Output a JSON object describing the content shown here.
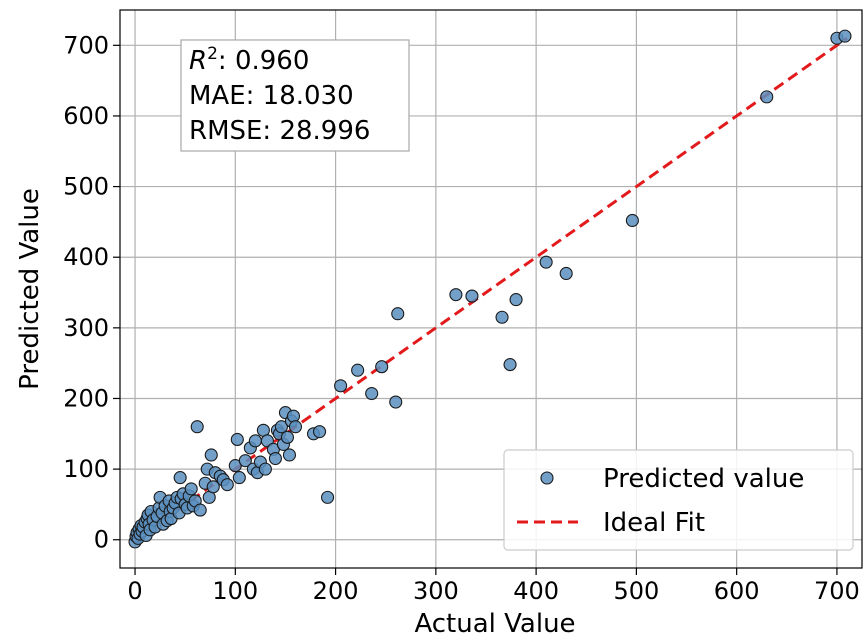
{
  "chart_data": {
    "type": "scatter",
    "xlabel": "Actual Value",
    "ylabel": "Predicted Value",
    "xlim": [
      -15,
      725
    ],
    "ylim": [
      -40,
      750
    ],
    "xticks": [
      0,
      100,
      200,
      300,
      400,
      500,
      600,
      700
    ],
    "yticks": [
      0,
      100,
      200,
      300,
      400,
      500,
      600,
      700
    ],
    "grid": true,
    "stats": {
      "r2_label": "0.960",
      "mae": "MAE: 18.030",
      "rmse": "RMSE: 28.996"
    },
    "legend": {
      "position": "lower-right",
      "entries": [
        "Predicted value",
        "Ideal Fit"
      ]
    },
    "ideal_fit": {
      "x": [
        0,
        710
      ],
      "y": [
        0,
        710
      ],
      "color": "#e31a1c"
    },
    "colors": {
      "points": "#5b8fbf",
      "point_edge": "#1a1a1a",
      "ideal_fit": "#e31a1c"
    },
    "series": [
      {
        "name": "Predicted value",
        "points": [
          [
            0,
            -3
          ],
          [
            1,
            5
          ],
          [
            2,
            10
          ],
          [
            3,
            2
          ],
          [
            4,
            15
          ],
          [
            5,
            8
          ],
          [
            6,
            20
          ],
          [
            7,
            12
          ],
          [
            8,
            18
          ],
          [
            10,
            25
          ],
          [
            11,
            6
          ],
          [
            12,
            30
          ],
          [
            13,
            35
          ],
          [
            14,
            22
          ],
          [
            15,
            14
          ],
          [
            16,
            40
          ],
          [
            18,
            28
          ],
          [
            20,
            18
          ],
          [
            22,
            33
          ],
          [
            24,
            45
          ],
          [
            25,
            60
          ],
          [
            27,
            38
          ],
          [
            28,
            22
          ],
          [
            30,
            48
          ],
          [
            32,
            27
          ],
          [
            34,
            55
          ],
          [
            35,
            40
          ],
          [
            36,
            30
          ],
          [
            38,
            45
          ],
          [
            40,
            52
          ],
          [
            42,
            60
          ],
          [
            44,
            38
          ],
          [
            45,
            88
          ],
          [
            46,
            58
          ],
          [
            48,
            65
          ],
          [
            50,
            50
          ],
          [
            52,
            45
          ],
          [
            54,
            62
          ],
          [
            56,
            72
          ],
          [
            58,
            48
          ],
          [
            60,
            55
          ],
          [
            62,
            160
          ],
          [
            65,
            42
          ],
          [
            70,
            80
          ],
          [
            72,
            100
          ],
          [
            74,
            60
          ],
          [
            76,
            120
          ],
          [
            78,
            75
          ],
          [
            80,
            95
          ],
          [
            85,
            90
          ],
          [
            88,
            85
          ],
          [
            92,
            78
          ],
          [
            100,
            105
          ],
          [
            102,
            142
          ],
          [
            104,
            88
          ],
          [
            110,
            112
          ],
          [
            115,
            130
          ],
          [
            118,
            100
          ],
          [
            120,
            140
          ],
          [
            122,
            95
          ],
          [
            125,
            110
          ],
          [
            128,
            155
          ],
          [
            130,
            100
          ],
          [
            132,
            140
          ],
          [
            138,
            128
          ],
          [
            140,
            115
          ],
          [
            142,
            155
          ],
          [
            144,
            150
          ],
          [
            146,
            160
          ],
          [
            148,
            135
          ],
          [
            150,
            180
          ],
          [
            152,
            145
          ],
          [
            154,
            120
          ],
          [
            156,
            168
          ],
          [
            158,
            175
          ],
          [
            160,
            160
          ],
          [
            178,
            150
          ],
          [
            184,
            153
          ],
          [
            192,
            60
          ],
          [
            205,
            218
          ],
          [
            222,
            240
          ],
          [
            236,
            207
          ],
          [
            246,
            245
          ],
          [
            260,
            195
          ],
          [
            262,
            320
          ],
          [
            320,
            347
          ],
          [
            336,
            345
          ],
          [
            366,
            315
          ],
          [
            374,
            248
          ],
          [
            380,
            340
          ],
          [
            410,
            393
          ],
          [
            430,
            377
          ],
          [
            496,
            452
          ],
          [
            630,
            627
          ],
          [
            700,
            710
          ],
          [
            708,
            713
          ]
        ]
      }
    ]
  }
}
